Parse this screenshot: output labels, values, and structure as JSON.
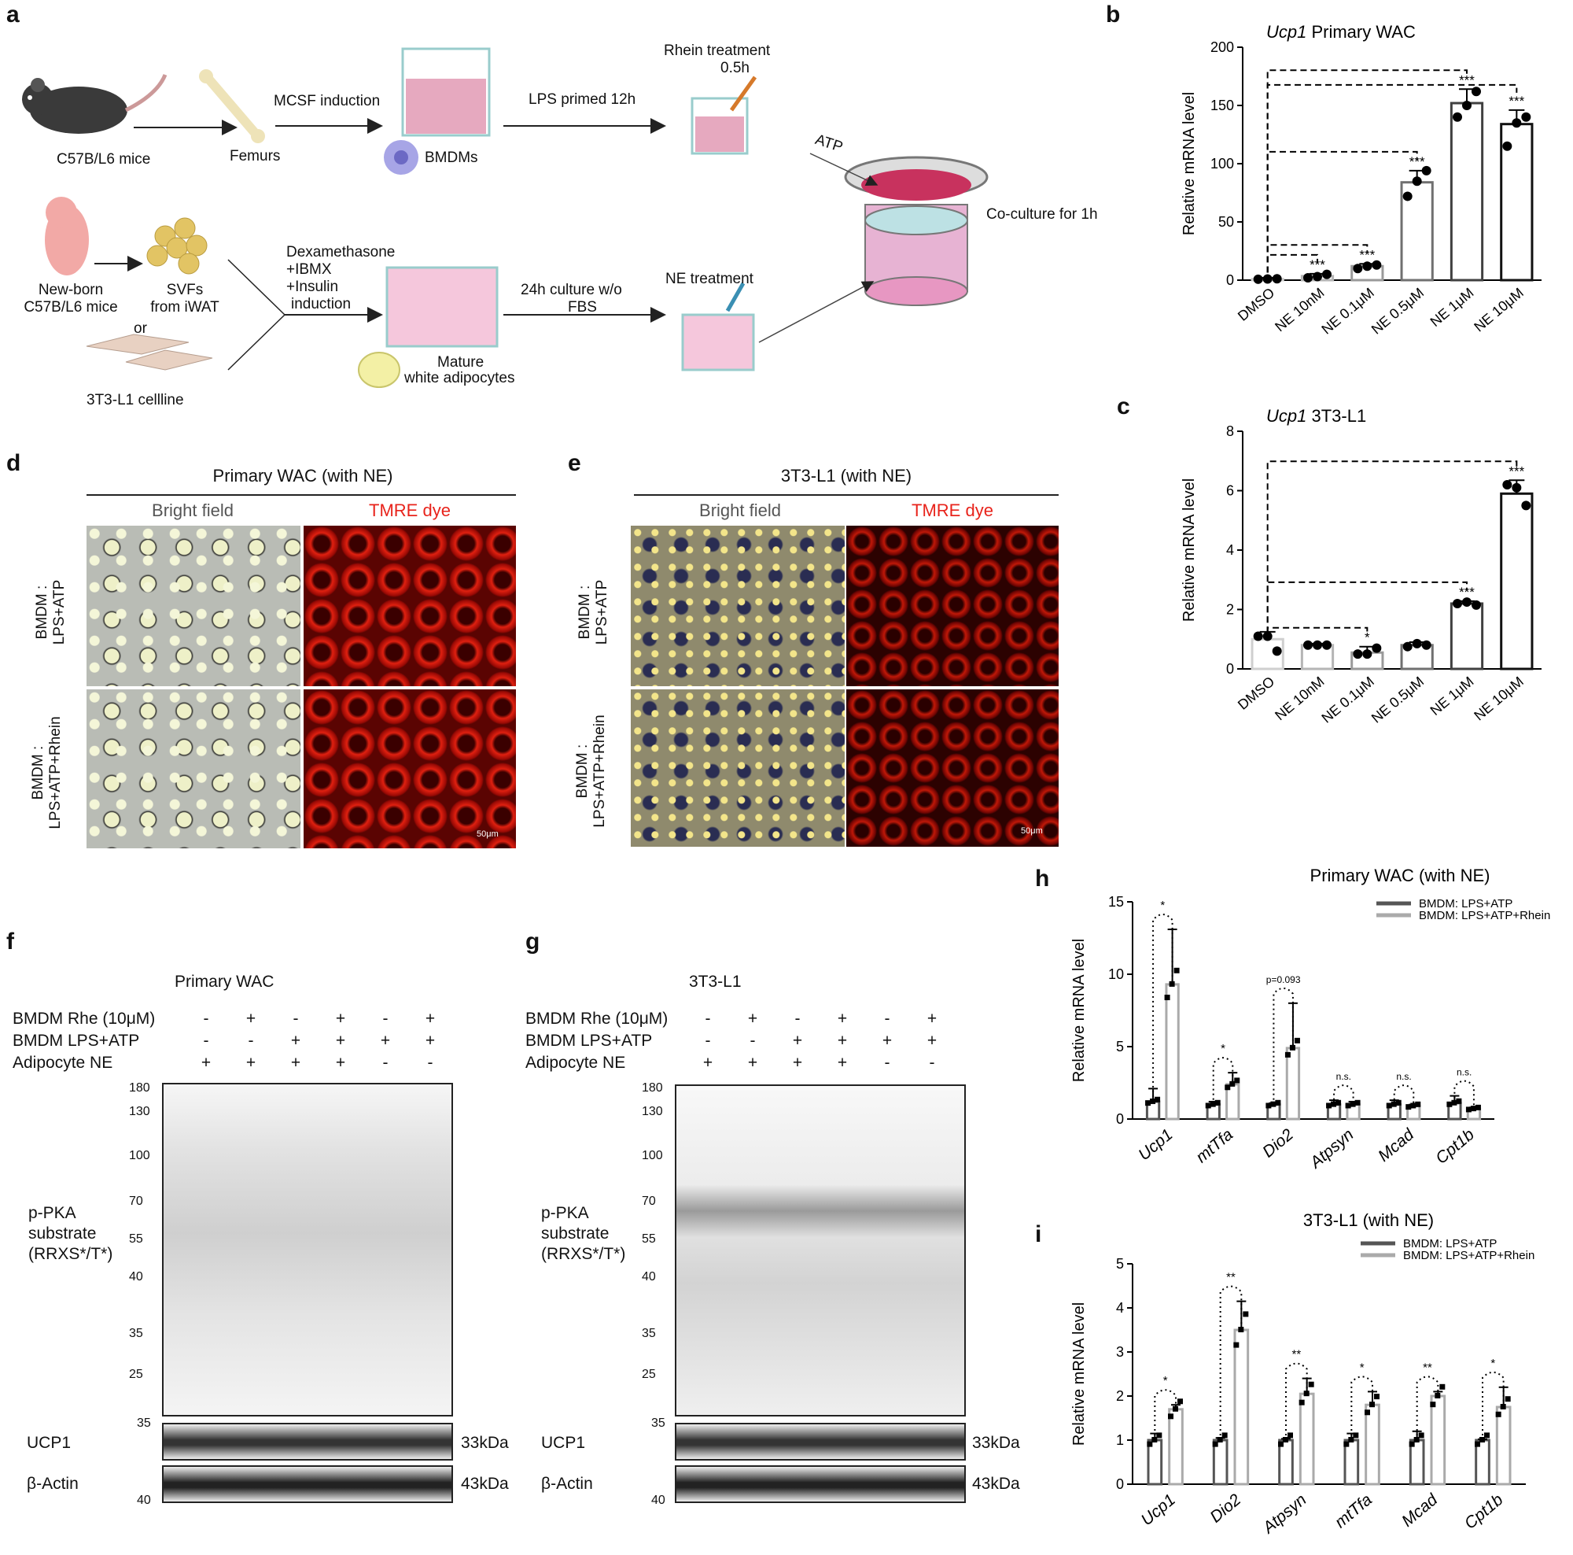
{
  "panel_letters": {
    "a": "a",
    "b": "b",
    "c": "c",
    "d": "d",
    "e": "e",
    "f": "f",
    "g": "g",
    "h": "h",
    "i": "i"
  },
  "schematic": {
    "mice": "C57B/L6 mice",
    "femurs": "Femurs",
    "mcsf": "MCSF induction",
    "bmdms": "BMDMs",
    "lps": "LPS primed 12h",
    "rhein1": "Rhein treatment",
    "rhein2": "0.5h",
    "atp": "ATP",
    "coculture": "Co-culture for 1h",
    "newborn1": "New-born",
    "newborn2": "C57B/L6 mice",
    "svfs1": "SVFs",
    "svfs2": "from iWAT",
    "or": "or",
    "cellline": "3T3-L1 cellline",
    "dex1": "Dexamethasone",
    "dex2": "+IBMX",
    "dex3": "+Insulin",
    "dex4": "induction",
    "culture1": "24h culture w/o",
    "culture2": "FBS",
    "ne_treat": "NE treatment",
    "mature1": "Mature",
    "mature2": "white adipocytes"
  },
  "panel_d": {
    "title": "Primary WAC (with NE)",
    "bf": "Bright field",
    "tmre": "TMRE dye",
    "row1a": "BMDM :",
    "row1b": "LPS+ATP",
    "row2a": "BMDM :",
    "row2b": "LPS+ATP+Rhein",
    "scale": "50μm"
  },
  "panel_e": {
    "title": "3T3-L1 (with NE)",
    "bf": "Bright field",
    "tmre": "TMRE dye",
    "row1a": "BMDM :",
    "row1b": "LPS+ATP",
    "row2a": "BMDM :",
    "row2b": "LPS+ATP+Rhein",
    "scale": "50μm"
  },
  "panel_f": {
    "title": "Primary WAC",
    "row1": "BMDM Rhe (10μM)",
    "row2": "BMDM LPS+ATP",
    "row3": "Adipocyte NE",
    "signs1": [
      "-",
      "+",
      "-",
      "+",
      "-",
      "+"
    ],
    "signs2": [
      "-",
      "-",
      "+",
      "+",
      "+",
      "+"
    ],
    "signs3": [
      "+",
      "+",
      "+",
      "+",
      "-",
      "-"
    ],
    "markers": [
      "180",
      "130",
      "100",
      "70",
      "55",
      "40",
      "35",
      "25"
    ],
    "ppka1": "p-PKA",
    "ppka2": "substrate",
    "ppka3": "(RRXS*/T*)",
    "ucp1": "UCP1",
    "ucp1_kda": "33kDa",
    "actin": "β-Actin",
    "actin_kda": "43kDa",
    "m35": "35",
    "m40": "40"
  },
  "panel_g": {
    "title": "3T3-L1",
    "row1": "BMDM Rhe (10μM)",
    "row2": "BMDM LPS+ATP",
    "row3": "Adipocyte NE",
    "signs1": [
      "-",
      "+",
      "-",
      "+",
      "-",
      "+"
    ],
    "signs2": [
      "-",
      "-",
      "+",
      "+",
      "+",
      "+"
    ],
    "signs3": [
      "+",
      "+",
      "+",
      "+",
      "-",
      "-"
    ],
    "markers": [
      "180",
      "130",
      "100",
      "70",
      "55",
      "40",
      "35",
      "25"
    ],
    "ppka1": "p-PKA",
    "ppka2": "substrate",
    "ppka3": "(RRXS*/T*)",
    "ucp1": "UCP1",
    "ucp1_kda": "33kDa",
    "actin": "β-Actin",
    "actin_kda": "43kDa",
    "m35": "35",
    "m40": "40"
  },
  "chart_data": [
    {
      "id": "b",
      "type": "bar",
      "title_italic": "Ucp1",
      "title_rest": " Primary WAC",
      "ylabel": "Relative mRNA level",
      "ylim": [
        0,
        200
      ],
      "yticks": [
        0,
        50,
        100,
        150,
        200
      ],
      "categories": [
        "DMSO",
        "NE 10nM",
        "NE 0.1μM",
        "NE 0.5μM",
        "NE 1μM",
        "NE 10μM"
      ],
      "values": [
        1,
        3.5,
        12,
        84,
        152,
        134
      ],
      "errors": [
        1,
        2,
        2,
        10,
        12,
        12
      ],
      "points": [
        [
          0.8,
          1.0,
          1.2
        ],
        [
          2,
          3,
          5
        ],
        [
          10,
          12,
          13
        ],
        [
          72,
          85,
          94
        ],
        [
          140,
          150,
          162
        ],
        [
          115,
          135,
          140
        ]
      ],
      "bar_colors": [
        "#cfcfcf",
        "#b5b5b5",
        "#9a9a9a",
        "#707070",
        "#404040",
        "#111111"
      ],
      "sig": [
        "",
        "***",
        "***",
        "***",
        "***",
        "***"
      ]
    },
    {
      "id": "c",
      "type": "bar",
      "title_italic": "Ucp1",
      "title_rest": " 3T3-L1",
      "ylabel": "Relative mRNA level",
      "ylim": [
        0,
        8
      ],
      "yticks": [
        0,
        2,
        4,
        6,
        8
      ],
      "categories": [
        "DMSO",
        "NE 10nM",
        "NE 0.1μM",
        "NE 0.5μM",
        "NE 1μM",
        "NE 10μM"
      ],
      "values": [
        1.0,
        0.8,
        0.55,
        0.8,
        2.2,
        5.9
      ],
      "errors": [
        0.25,
        0.05,
        0.2,
        0.1,
        0.08,
        0.45
      ],
      "points": [
        [
          1.1,
          1.1,
          0.6
        ],
        [
          0.8,
          0.8,
          0.8
        ],
        [
          0.5,
          0.5,
          0.7
        ],
        [
          0.75,
          0.85,
          0.8
        ],
        [
          2.2,
          2.25,
          2.15
        ],
        [
          6.2,
          6.1,
          5.5
        ]
      ],
      "bar_colors": [
        "#cfcfcf",
        "#b5b5b5",
        "#9a9a9a",
        "#707070",
        "#404040",
        "#111111"
      ],
      "sig": [
        "",
        "",
        "*",
        "",
        "***",
        "***"
      ]
    },
    {
      "id": "h",
      "type": "bar",
      "title": "Primary WAC (with NE)",
      "ylabel": "Relative mRNA level",
      "ylim": [
        0,
        15
      ],
      "yticks": [
        0,
        5,
        10,
        15
      ],
      "categories": [
        "Ucp1",
        "mtTfa",
        "Dio2",
        "Atpsyn",
        "Mcad",
        "Cpt1b"
      ],
      "series": [
        {
          "name": "BMDM: LPS+ATP",
          "values": [
            1.2,
            1.0,
            1.0,
            1.0,
            1.0,
            1.1
          ],
          "errors": [
            0.9,
            0.2,
            0.1,
            0.3,
            0.3,
            0.5
          ]
        },
        {
          "name": "BMDM: LPS+ATP+Rhein",
          "values": [
            9.3,
            2.4,
            4.9,
            1.0,
            0.9,
            0.7
          ],
          "errors": [
            3.8,
            0.8,
            3.1,
            0.2,
            0.1,
            0.1
          ]
        }
      ],
      "sig": [
        "*",
        "*",
        "p=0.093",
        "n.s.",
        "n.s.",
        "n.s."
      ]
    },
    {
      "id": "i",
      "type": "bar",
      "title": "3T3-L1 (with NE)",
      "ylabel": "Relative mRNA level",
      "ylim": [
        0,
        5
      ],
      "yticks": [
        0,
        1,
        2,
        3,
        4,
        5
      ],
      "categories": [
        "Ucp1",
        "Dio2",
        "Atpsyn",
        "mtTfa",
        "Mcad",
        "Cpt1b"
      ],
      "series": [
        {
          "name": "BMDM: LPS+ATP",
          "values": [
            1.0,
            1.0,
            1.0,
            1.0,
            1.0,
            1.0
          ],
          "errors": [
            0.15,
            0.05,
            0.03,
            0.15,
            0.2,
            0.02
          ]
        },
        {
          "name": "BMDM: LPS+ATP+Rhein",
          "values": [
            1.7,
            3.5,
            2.05,
            1.8,
            2.0,
            1.75
          ],
          "errors": [
            0.1,
            0.65,
            0.35,
            0.3,
            0.1,
            0.45
          ]
        }
      ],
      "sig": [
        "*",
        "**",
        "**",
        "*",
        "**",
        "*"
      ]
    }
  ]
}
